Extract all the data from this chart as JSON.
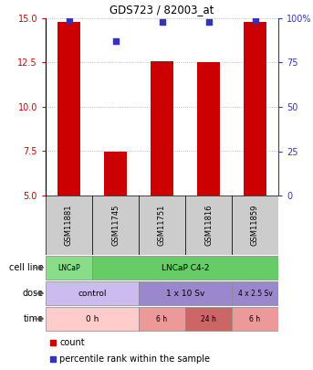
{
  "title": "GDS723 / 82003_at",
  "samples": [
    "GSM11881",
    "GSM11745",
    "GSM11751",
    "GSM11816",
    "GSM11859"
  ],
  "bar_values": [
    14.8,
    7.5,
    12.6,
    12.5,
    14.8
  ],
  "bar_bottom": 5.0,
  "percentile_values": [
    99,
    87,
    98,
    98,
    99
  ],
  "ylim_left": [
    5,
    15
  ],
  "ylim_right": [
    0,
    100
  ],
  "yticks_left": [
    5,
    7.5,
    10,
    12.5,
    15
  ],
  "yticks_right": [
    0,
    25,
    50,
    75,
    100
  ],
  "bar_color": "#cc0000",
  "dot_color": "#3333bb",
  "grid_color": "#aaaaaa",
  "cell_line_row": {
    "label": "cell line",
    "segments": [
      {
        "text": "LNCaP",
        "span": [
          0,
          1
        ],
        "color": "#88dd88"
      },
      {
        "text": "LNCaP C4-2",
        "span": [
          1,
          5
        ],
        "color": "#66cc66"
      }
    ]
  },
  "dose_row": {
    "label": "dose",
    "segments": [
      {
        "text": "control",
        "span": [
          0,
          2
        ],
        "color": "#ccbbee"
      },
      {
        "text": "1 x 10 Sv",
        "span": [
          2,
          4
        ],
        "color": "#9988cc"
      },
      {
        "text": "4 x 2.5 Sv",
        "span": [
          4,
          5
        ],
        "color": "#9988cc"
      }
    ]
  },
  "time_row": {
    "label": "time",
    "segments": [
      {
        "text": "0 h",
        "span": [
          0,
          2
        ],
        "color": "#ffcccc"
      },
      {
        "text": "6 h",
        "span": [
          2,
          3
        ],
        "color": "#ee9999"
      },
      {
        "text": "24 h",
        "span": [
          3,
          4
        ],
        "color": "#cc6666"
      },
      {
        "text": "6 h",
        "span": [
          4,
          5
        ],
        "color": "#ee9999"
      }
    ]
  },
  "legend_count_color": "#cc0000",
  "legend_percentile_color": "#3333bb",
  "left_axis_color": "#cc0000",
  "right_axis_color": "#3333bb",
  "gsm_bg_color": "#cccccc",
  "gsm_text_color": "#000000"
}
